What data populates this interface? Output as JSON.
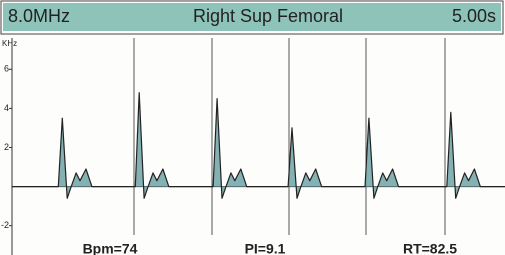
{
  "chart_data": {
    "type": "line",
    "header": {
      "left": "8.0MHz",
      "title": "Right Sup Femoral",
      "right": "5.00s"
    },
    "ylabel": "KHz",
    "x": [
      0,
      0.47,
      0.51,
      0.56,
      0.6,
      0.65,
      0.69,
      0.75,
      0.81,
      1.25,
      1.29,
      1.34,
      1.38,
      1.43,
      1.47,
      1.53,
      1.59,
      2.04,
      2.08,
      2.13,
      2.17,
      2.22,
      2.26,
      2.32,
      2.38,
      2.8,
      2.84,
      2.89,
      2.93,
      2.98,
      3.02,
      3.08,
      3.14,
      3.58,
      3.62,
      3.67,
      3.71,
      3.76,
      3.8,
      3.86,
      3.92,
      4.41,
      4.45,
      4.5,
      4.54,
      4.59,
      4.63,
      4.69,
      4.75,
      5
    ],
    "values": [
      0,
      0,
      3.5,
      -0.6,
      0,
      0.7,
      0.3,
      0.9,
      0,
      0,
      4.8,
      -0.6,
      0,
      0.7,
      0.3,
      0.9,
      0,
      0,
      4.5,
      -0.6,
      0,
      0.7,
      0.3,
      0.9,
      0,
      0,
      3.0,
      -0.6,
      0,
      0.7,
      0.3,
      0.9,
      0,
      0,
      3.5,
      -0.6,
      0,
      0.7,
      0.3,
      0.9,
      0,
      0,
      3.8,
      -0.6,
      0,
      0.7,
      0.3,
      0.9,
      0,
      0
    ],
    "color": "#6fa3a6",
    "xlim": [
      0,
      5
    ],
    "ylim": [
      -3.5,
      7.6
    ],
    "yticks": [
      -2,
      2,
      4,
      6
    ],
    "measurements": [
      "Bpm=74",
      "PI=9.1",
      "RT=82.5"
    ]
  }
}
